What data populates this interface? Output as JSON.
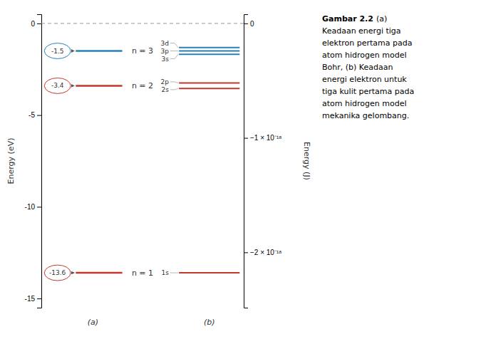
{
  "chart_data": {
    "type": "energy_level",
    "ylabel": "Energy (eV)",
    "ylim": [
      -15.5,
      0.5
    ],
    "yticks": [
      0,
      -5,
      -10,
      -15
    ],
    "y2label": "Energy (J)",
    "y2lim": [
      -2.4831e-18,
      8.01e-20
    ],
    "y2ticks": [
      0,
      {
        "value": -1e-18,
        "label": "−1 × 10⁻¹⁸"
      },
      {
        "value": -2e-18,
        "label": "−2 × 10⁻¹⁸"
      }
    ],
    "hlines": [
      {
        "value": 0,
        "line_style": "dashed",
        "color": "#999999"
      }
    ],
    "series": [
      {
        "label": "(a)",
        "categories": [
          "n = 1",
          "n = 2",
          "n = 3"
        ],
        "values": [
          -13.6,
          -3.4,
          -1.5
        ],
        "colors": [
          "#c0392b",
          "#c0392b",
          "#2980b9"
        ],
        "data_labels": true
      },
      {
        "label": "(b)",
        "categories": [
          "3d",
          "3p",
          "3s",
          "2p",
          "2s",
          "1s"
        ],
        "values": [
          -1.32,
          -1.5,
          -1.68,
          -3.25,
          -3.55,
          -13.6
        ],
        "colors": [
          "#2980b9",
          "#2980b9",
          "#2980b9",
          "#c0392b",
          "#c0392b",
          "#c0392b"
        ]
      }
    ],
    "caption_title": "Gambar 2.2",
    "caption": [
      "(a)",
      "Keadaan energi tiga",
      "elektron pertama pada",
      "atom hidrogen model",
      "Bohr, (b) Keadaan",
      "energi elektron untuk",
      "tiga kulit pertama pada",
      "atom hidrogen model",
      "mekanika gelombang."
    ]
  }
}
